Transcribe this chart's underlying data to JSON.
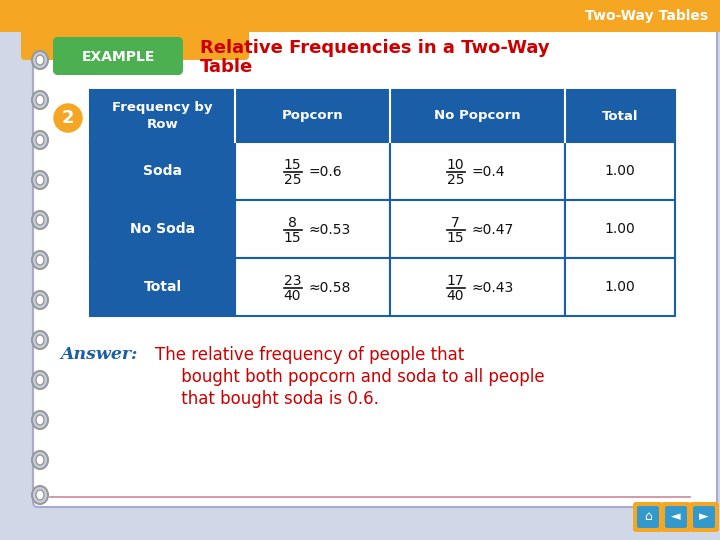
{
  "title_bar_color": "#F5A623",
  "title_bar_text": "Two-Way Tables",
  "bg_color": "#D0D8E8",
  "paper_color": "#FFFFFF",
  "example_badge_color": "#4CAF50",
  "example_badge_text": "EXAMPLE",
  "main_title_line1": "Relative Frequencies in a Two-Way",
  "main_title_line2": "Table",
  "main_title_color": "#CC0000",
  "header_bg": "#1A5EA8",
  "header_text_color": "#FFFFFF",
  "row_label_bg": "#1A5EA8",
  "row_label_color": "#FFFFFF",
  "cell_bg": "#FFFFFF",
  "cell_border": "#1A5EA8",
  "col_headers": [
    "Frequency by\nRow",
    "Popcorn",
    "No Popcorn",
    "Total"
  ],
  "rows": [
    {
      "label": "Soda",
      "popcorn_num": "15",
      "popcorn_den": "25",
      "popcorn_sym": "=",
      "popcorn_dec": "0.6",
      "nopop_num": "10",
      "nopop_den": "25",
      "nopop_sym": "=",
      "nopop_dec": "0.4",
      "total": "1.00"
    },
    {
      "label": "No Soda",
      "popcorn_num": "8",
      "popcorn_den": "15",
      "popcorn_sym": "≈",
      "popcorn_dec": "0.53",
      "nopop_num": "7",
      "nopop_den": "15",
      "nopop_sym": "≈",
      "nopop_dec": "0.47",
      "total": "1.00"
    },
    {
      "label": "Total",
      "popcorn_num": "23",
      "popcorn_den": "40",
      "popcorn_sym": "≈",
      "popcorn_dec": "0.58",
      "nopop_num": "17",
      "nopop_den": "40",
      "nopop_sym": "≈",
      "nopop_dec": "0.43",
      "total": "1.00"
    }
  ],
  "answer_label": "Answer:",
  "answer_label_color": "#1A5EA8",
  "answer_line1": "The relative frequency of people that",
  "answer_line2": "     bought both popcorn and soda to all people",
  "answer_line3": "     that bought soda is 0.6.",
  "answer_text_color": "#CC0000",
  "spiral_color": "#999999",
  "spiral_fill": "#C8D0E0",
  "num_badge_color": "#F5A623",
  "num_badge_text": "2",
  "orange_tab_color": "#F5A623",
  "bottom_line_color": "#CC8899",
  "nav_bg": "#F5A623",
  "nav_inner": "#3399CC"
}
